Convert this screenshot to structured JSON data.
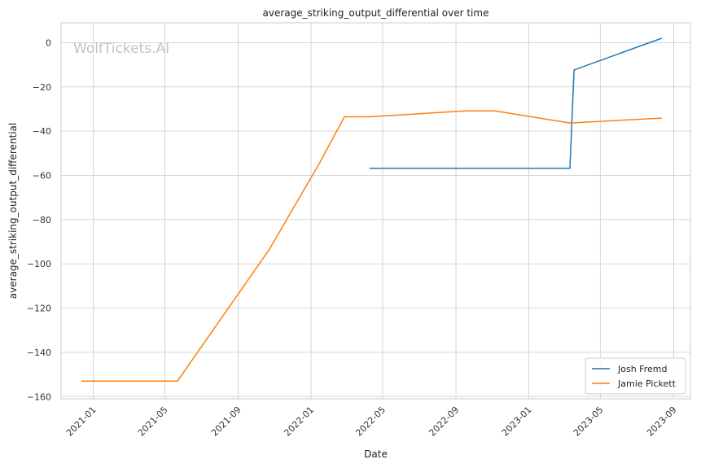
{
  "chart_data": {
    "type": "line",
    "title": "average_striking_output_differential over time",
    "xlabel": "Date",
    "ylabel": "average_striking_output_differential",
    "watermark": "WolfTickets.AI",
    "x_type": "date",
    "xlim": [
      "2020-11-08",
      "2023-09-29"
    ],
    "ylim": [
      -161,
      9
    ],
    "x_ticks": [
      "2021-01",
      "2021-05",
      "2021-09",
      "2022-01",
      "2022-05",
      "2022-09",
      "2023-01",
      "2023-05",
      "2023-09"
    ],
    "y_ticks": [
      0,
      -20,
      -40,
      -60,
      -80,
      -100,
      -120,
      -140,
      -160
    ],
    "grid": true,
    "legend_position": "lower-right",
    "series": [
      {
        "name": "Josh Fremd",
        "color": "#1f77b4",
        "points": [
          {
            "x": "2022-04-09",
            "y": -56.8
          },
          {
            "x": "2023-03-11",
            "y": -56.8
          },
          {
            "x": "2023-03-18",
            "y": -12.3
          },
          {
            "x": "2023-08-12",
            "y": 2.0
          }
        ]
      },
      {
        "name": "Jamie Pickett",
        "color": "#ff7f0e",
        "points": [
          {
            "x": "2020-12-12",
            "y": -153.0
          },
          {
            "x": "2021-05-22",
            "y": -153.0
          },
          {
            "x": "2021-10-23",
            "y": -93.5
          },
          {
            "x": "2022-01-15",
            "y": -54.5
          },
          {
            "x": "2022-02-26",
            "y": -33.5
          },
          {
            "x": "2022-04-09",
            "y": -33.5
          },
          {
            "x": "2022-09-17",
            "y": -30.8
          },
          {
            "x": "2022-11-05",
            "y": -30.8
          },
          {
            "x": "2023-03-11",
            "y": -36.3
          },
          {
            "x": "2023-08-12",
            "y": -34.1
          }
        ]
      }
    ]
  }
}
